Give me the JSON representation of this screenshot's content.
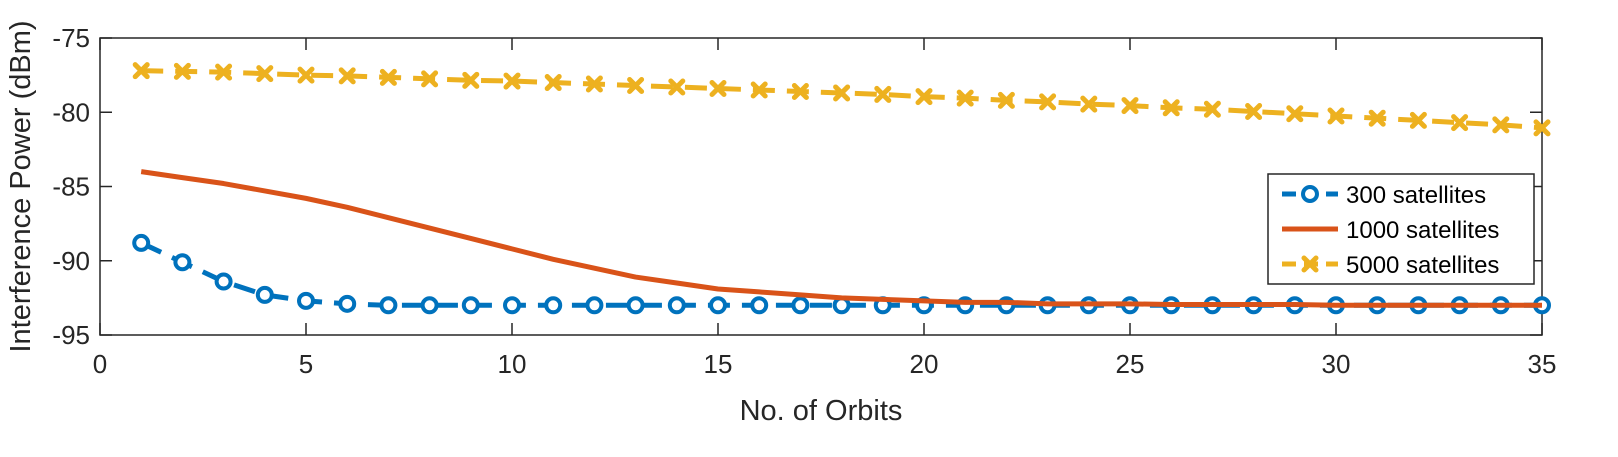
{
  "chart_data": {
    "type": "line",
    "title": "",
    "xlabel": "No. of Orbits",
    "ylabel": "Interference Power (dBm)",
    "xlim": [
      0,
      35
    ],
    "ylim": [
      -95,
      -75
    ],
    "xticks": [
      0,
      5,
      10,
      15,
      20,
      25,
      30,
      35
    ],
    "yticks": [
      -75,
      -80,
      -85,
      -90,
      -95
    ],
    "grid": false,
    "legend_position": "right",
    "x": [
      1,
      2,
      3,
      4,
      5,
      6,
      7,
      8,
      9,
      10,
      11,
      12,
      13,
      14,
      15,
      16,
      17,
      18,
      19,
      20,
      21,
      22,
      23,
      24,
      25,
      26,
      27,
      28,
      29,
      30,
      31,
      32,
      33,
      34,
      35
    ],
    "series": [
      {
        "name": "300 satellites",
        "color": "#0072BD",
        "line_style": "dashed",
        "marker": "circle",
        "values": [
          -88.8,
          -90.1,
          -91.4,
          -92.3,
          -92.7,
          -92.9,
          -93.0,
          -93.0,
          -93.0,
          -93.0,
          -93.0,
          -93.0,
          -93.0,
          -93.0,
          -93.0,
          -93.0,
          -93.0,
          -93.0,
          -93.0,
          -93.0,
          -93.0,
          -93.0,
          -93.0,
          -93.0,
          -93.0,
          -93.0,
          -93.0,
          -93.0,
          -93.0,
          -93.0,
          -93.0,
          -93.0,
          -93.0,
          -93.0,
          -93.0
        ]
      },
      {
        "name": "1000 satellites",
        "color": "#D95319",
        "line_style": "solid",
        "marker": "none",
        "values": [
          -84.0,
          -84.4,
          -84.8,
          -85.3,
          -85.8,
          -86.4,
          -87.1,
          -87.8,
          -88.5,
          -89.2,
          -89.9,
          -90.5,
          -91.1,
          -91.5,
          -91.9,
          -92.1,
          -92.3,
          -92.5,
          -92.6,
          -92.7,
          -92.8,
          -92.8,
          -92.9,
          -92.9,
          -92.9,
          -92.95,
          -92.95,
          -92.95,
          -92.95,
          -93.0,
          -93.0,
          -93.0,
          -93.0,
          -93.0,
          -93.0
        ]
      },
      {
        "name": "5000 satellites",
        "color": "#EDB120",
        "line_style": "dashed",
        "marker": "x",
        "values": [
          -77.2,
          -77.25,
          -77.3,
          -77.4,
          -77.5,
          -77.55,
          -77.65,
          -77.75,
          -77.85,
          -77.9,
          -78.0,
          -78.1,
          -78.2,
          -78.3,
          -78.4,
          -78.5,
          -78.6,
          -78.7,
          -78.8,
          -78.95,
          -79.05,
          -79.2,
          -79.3,
          -79.45,
          -79.55,
          -79.7,
          -79.8,
          -79.95,
          -80.1,
          -80.25,
          -80.4,
          -80.55,
          -80.7,
          -80.85,
          -81.05
        ]
      }
    ]
  }
}
